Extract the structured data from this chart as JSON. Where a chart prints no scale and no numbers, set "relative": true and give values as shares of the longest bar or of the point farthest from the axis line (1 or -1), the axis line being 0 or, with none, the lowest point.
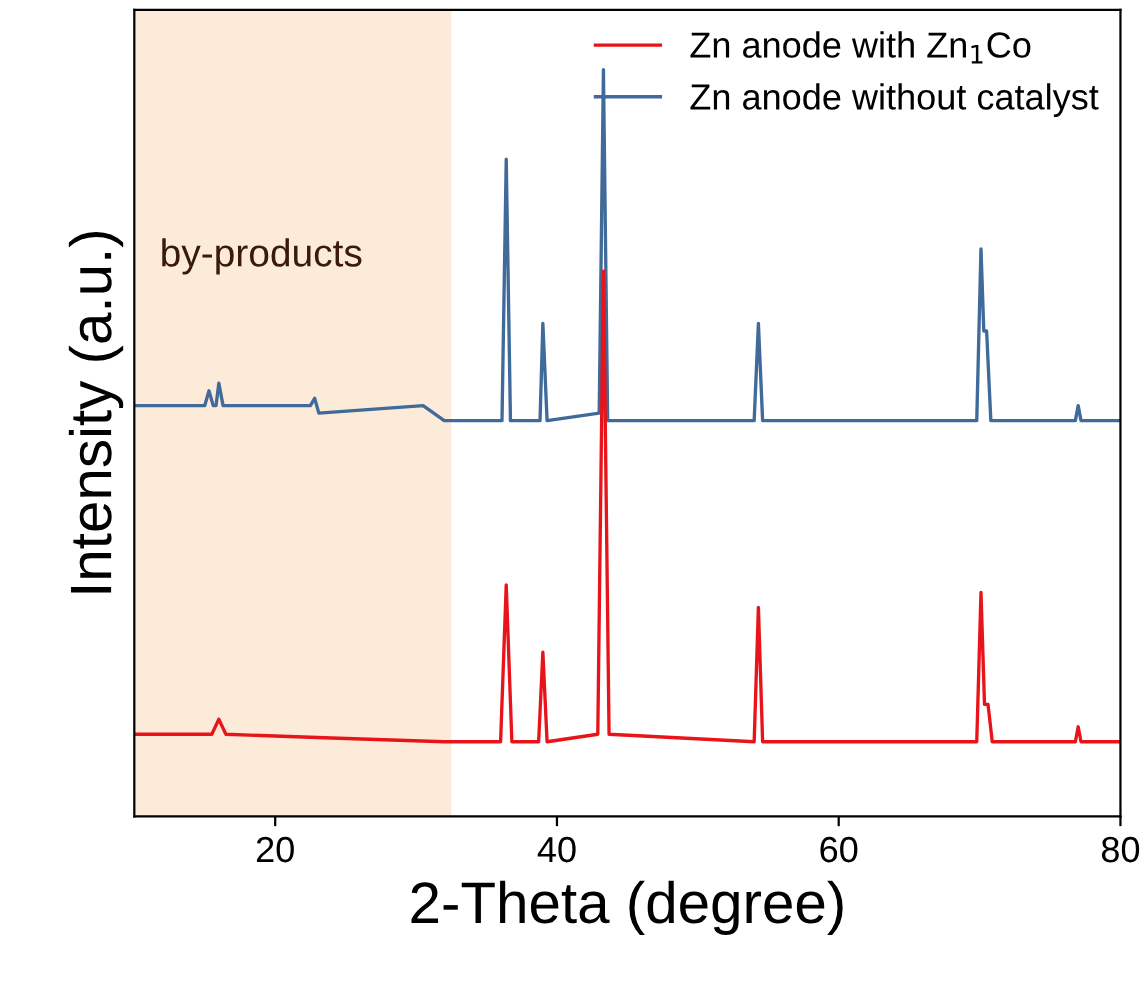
{
  "chart_data": {
    "type": "line",
    "relative": true,
    "xlabel": "2-Theta (degree)",
    "ylabel": "Intensity (a.u.)",
    "xlim": [
      10,
      80
    ],
    "xticks": [
      20,
      40,
      60,
      80
    ],
    "legend": "top right",
    "grid": false,
    "tick_labels": "x",
    "bands": [
      {
        "axis": "x",
        "from": 10,
        "to": 32.5,
        "label": "by-products",
        "color": "#fdebd9"
      }
    ],
    "series": [
      {
        "name": "Zn anode with Zn$_{1}$Co",
        "color": "#e8141a",
        "x": [
          10,
          15.5,
          16.0,
          16.5,
          24,
          32,
          36.0,
          36.4,
          36.8,
          38.7,
          39.0,
          39.3,
          42.9,
          43.3,
          43.7,
          54.0,
          54.3,
          54.6,
          69.8,
          70.1,
          70.35,
          70.6,
          70.9,
          76.8,
          77.0,
          77.2,
          80
        ],
        "values": [
          0.11,
          0.11,
          0.13,
          0.11,
          0.105,
          0.1,
          0.1,
          0.31,
          0.1,
          0.1,
          0.22,
          0.1,
          0.11,
          0.73,
          0.11,
          0.1,
          0.28,
          0.1,
          0.1,
          0.3,
          0.15,
          0.15,
          0.1,
          0.1,
          0.12,
          0.1,
          0.1
        ]
      },
      {
        "name": "Zn anode without catalyst",
        "color": "#3f6a9a",
        "x": [
          10,
          15.0,
          15.3,
          15.6,
          15.8,
          16.0,
          16.3,
          22.5,
          22.8,
          23.1,
          30.5,
          32,
          36.1,
          36.4,
          36.7,
          38.8,
          39.0,
          39.3,
          43.0,
          43.3,
          43.6,
          54.0,
          54.3,
          54.6,
          69.8,
          70.1,
          70.3,
          70.5,
          70.8,
          76.8,
          77.0,
          77.2,
          80
        ],
        "values": [
          0.55,
          0.55,
          0.57,
          0.55,
          0.55,
          0.58,
          0.55,
          0.55,
          0.56,
          0.54,
          0.55,
          0.53,
          0.53,
          0.88,
          0.53,
          0.53,
          0.66,
          0.53,
          0.54,
          1.0,
          0.53,
          0.53,
          0.66,
          0.53,
          0.53,
          0.76,
          0.65,
          0.65,
          0.53,
          0.53,
          0.55,
          0.53,
          0.53
        ]
      }
    ]
  }
}
